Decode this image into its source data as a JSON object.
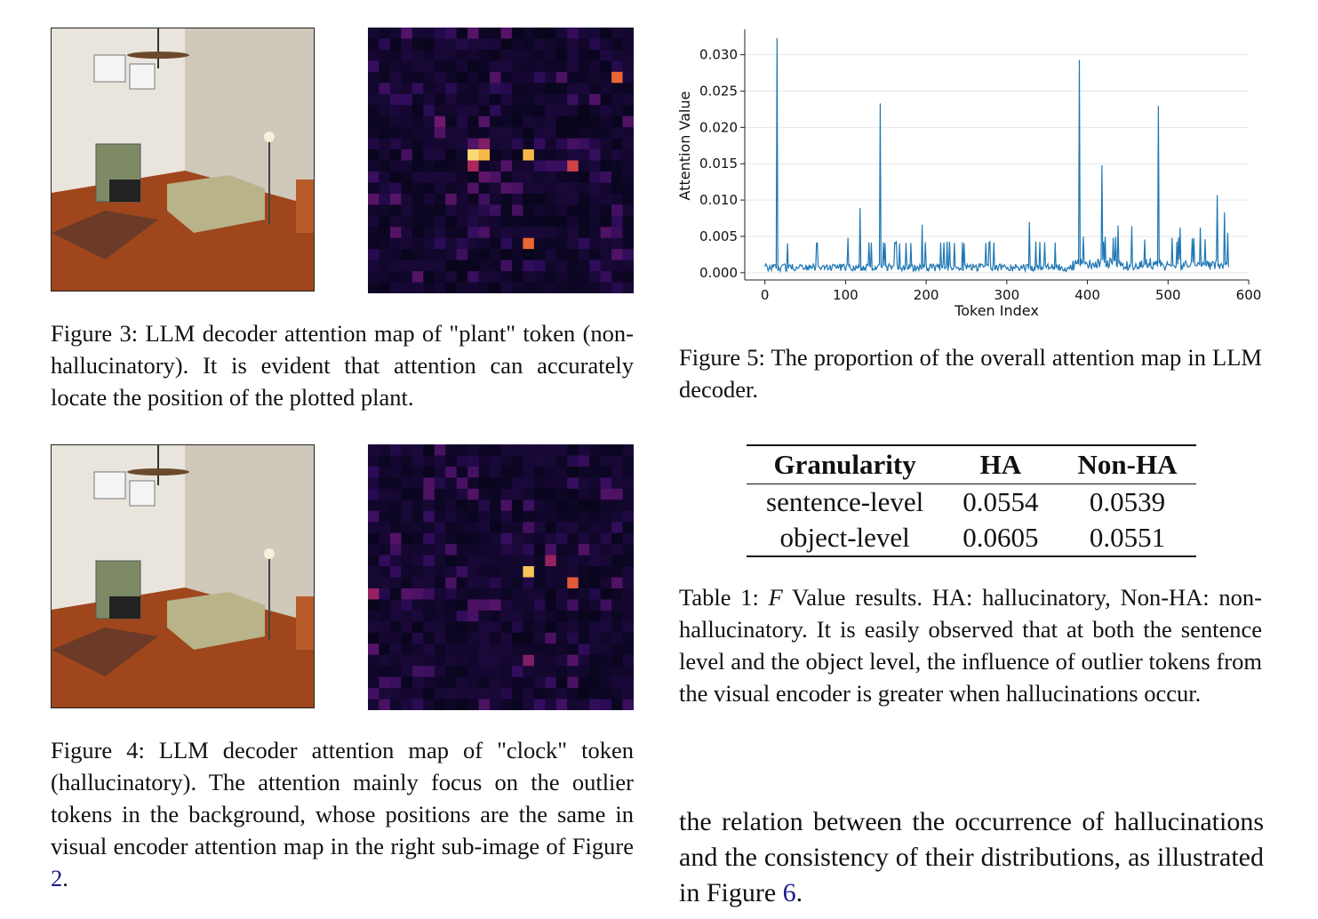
{
  "fig3": {
    "caption": "Figure 3: LLM decoder attention map of \"plant\" token (non-hallucinatory). It is evident that attention can accurately locate the position of the plotted plant."
  },
  "fig4": {
    "caption_main": "Figure 4: LLM decoder attention map of \"clock\" token (hallucinatory). The attention mainly focus on the outlier tokens in the background, whose positions are the same in visual encoder attention map in the right sub-image of Figure ",
    "caption_ref": "2",
    "caption_end": "."
  },
  "fig5": {
    "caption": "Figure 5: The proportion of the overall attention map in LLM decoder."
  },
  "table1": {
    "headers": [
      "Granularity",
      "HA",
      "Non-HA"
    ],
    "rows": [
      [
        "sentence-level",
        "0.0554",
        "0.0539"
      ],
      [
        "object-level",
        "0.0605",
        "0.0551"
      ]
    ],
    "caption_prefix": "Table 1: ",
    "caption_symbol": "F",
    "caption_rest": " Value results. HA: hallucinatory, Non-HA: non-hallucinatory. It is easily observed that at both the sentence level and the object level, the influence of outlier tokens from the visual encoder is greater when hallucinations occur."
  },
  "body": {
    "text_main": "the relation between the occurrence of hallucinations and the consistency of their distributions, as illustrated in Figure ",
    "text_ref": "6",
    "text_end": "."
  },
  "chart_data": {
    "type": "line",
    "xlabel": "Token Index",
    "ylabel": "Attention Value",
    "xlim": [
      -25,
      600
    ],
    "ylim": [
      -0.001,
      0.0335
    ],
    "xticks": [
      0,
      100,
      200,
      300,
      400,
      500,
      600
    ],
    "yticks": [
      0.0,
      0.005,
      0.01,
      0.015,
      0.02,
      0.025,
      0.03
    ],
    "ytick_labels": [
      "0.000",
      "0.005",
      "0.010",
      "0.015",
      "0.020",
      "0.025",
      "0.030"
    ],
    "grid": "horizontal",
    "color": "#1f77b4",
    "n_points": 576,
    "baseline": 0.001,
    "spikes": [
      {
        "x": 15,
        "y": 0.0323
      },
      {
        "x": 103,
        "y": 0.0048
      },
      {
        "x": 118,
        "y": 0.0089
      },
      {
        "x": 143,
        "y": 0.0233
      },
      {
        "x": 175,
        "y": 0.0041
      },
      {
        "x": 195,
        "y": 0.0066
      },
      {
        "x": 245,
        "y": 0.0042
      },
      {
        "x": 328,
        "y": 0.007
      },
      {
        "x": 390,
        "y": 0.0293
      },
      {
        "x": 418,
        "y": 0.0148
      },
      {
        "x": 438,
        "y": 0.0065
      },
      {
        "x": 455,
        "y": 0.0064
      },
      {
        "x": 488,
        "y": 0.023
      },
      {
        "x": 515,
        "y": 0.0062
      },
      {
        "x": 540,
        "y": 0.0062
      },
      {
        "x": 561,
        "y": 0.0107
      },
      {
        "x": 570,
        "y": 0.0083
      },
      {
        "x": 574,
        "y": 0.0055
      }
    ],
    "heatmap_fig3": {
      "type": "heatmap",
      "grid": [
        24,
        24
      ],
      "hot_cells": [
        {
          "row": 4,
          "col": 22,
          "v": 0.75
        },
        {
          "row": 11,
          "col": 9,
          "v": 0.95
        },
        {
          "row": 11,
          "col": 10,
          "v": 0.9
        },
        {
          "row": 11,
          "col": 14,
          "v": 0.9
        },
        {
          "row": 12,
          "col": 9,
          "v": 0.55
        },
        {
          "row": 12,
          "col": 18,
          "v": 0.65
        },
        {
          "row": 19,
          "col": 14,
          "v": 0.75
        },
        {
          "row": 8,
          "col": 6,
          "v": 0.4
        },
        {
          "row": 10,
          "col": 10,
          "v": 0.45
        },
        {
          "row": 13,
          "col": 10,
          "v": 0.35
        },
        {
          "row": 13,
          "col": 11,
          "v": 0.3
        }
      ]
    },
    "heatmap_fig4": {
      "type": "heatmap",
      "grid": [
        24,
        24
      ],
      "hot_cells": [
        {
          "row": 11,
          "col": 14,
          "v": 0.92
        },
        {
          "row": 10,
          "col": 16,
          "v": 0.5
        },
        {
          "row": 12,
          "col": 18,
          "v": 0.72
        },
        {
          "row": 13,
          "col": 0,
          "v": 0.5
        },
        {
          "row": 19,
          "col": 14,
          "v": 0.45
        },
        {
          "row": 13,
          "col": 4,
          "v": 0.3
        },
        {
          "row": 3,
          "col": 5,
          "v": 0.3
        },
        {
          "row": 4,
          "col": 22,
          "v": 0.3
        }
      ]
    }
  }
}
